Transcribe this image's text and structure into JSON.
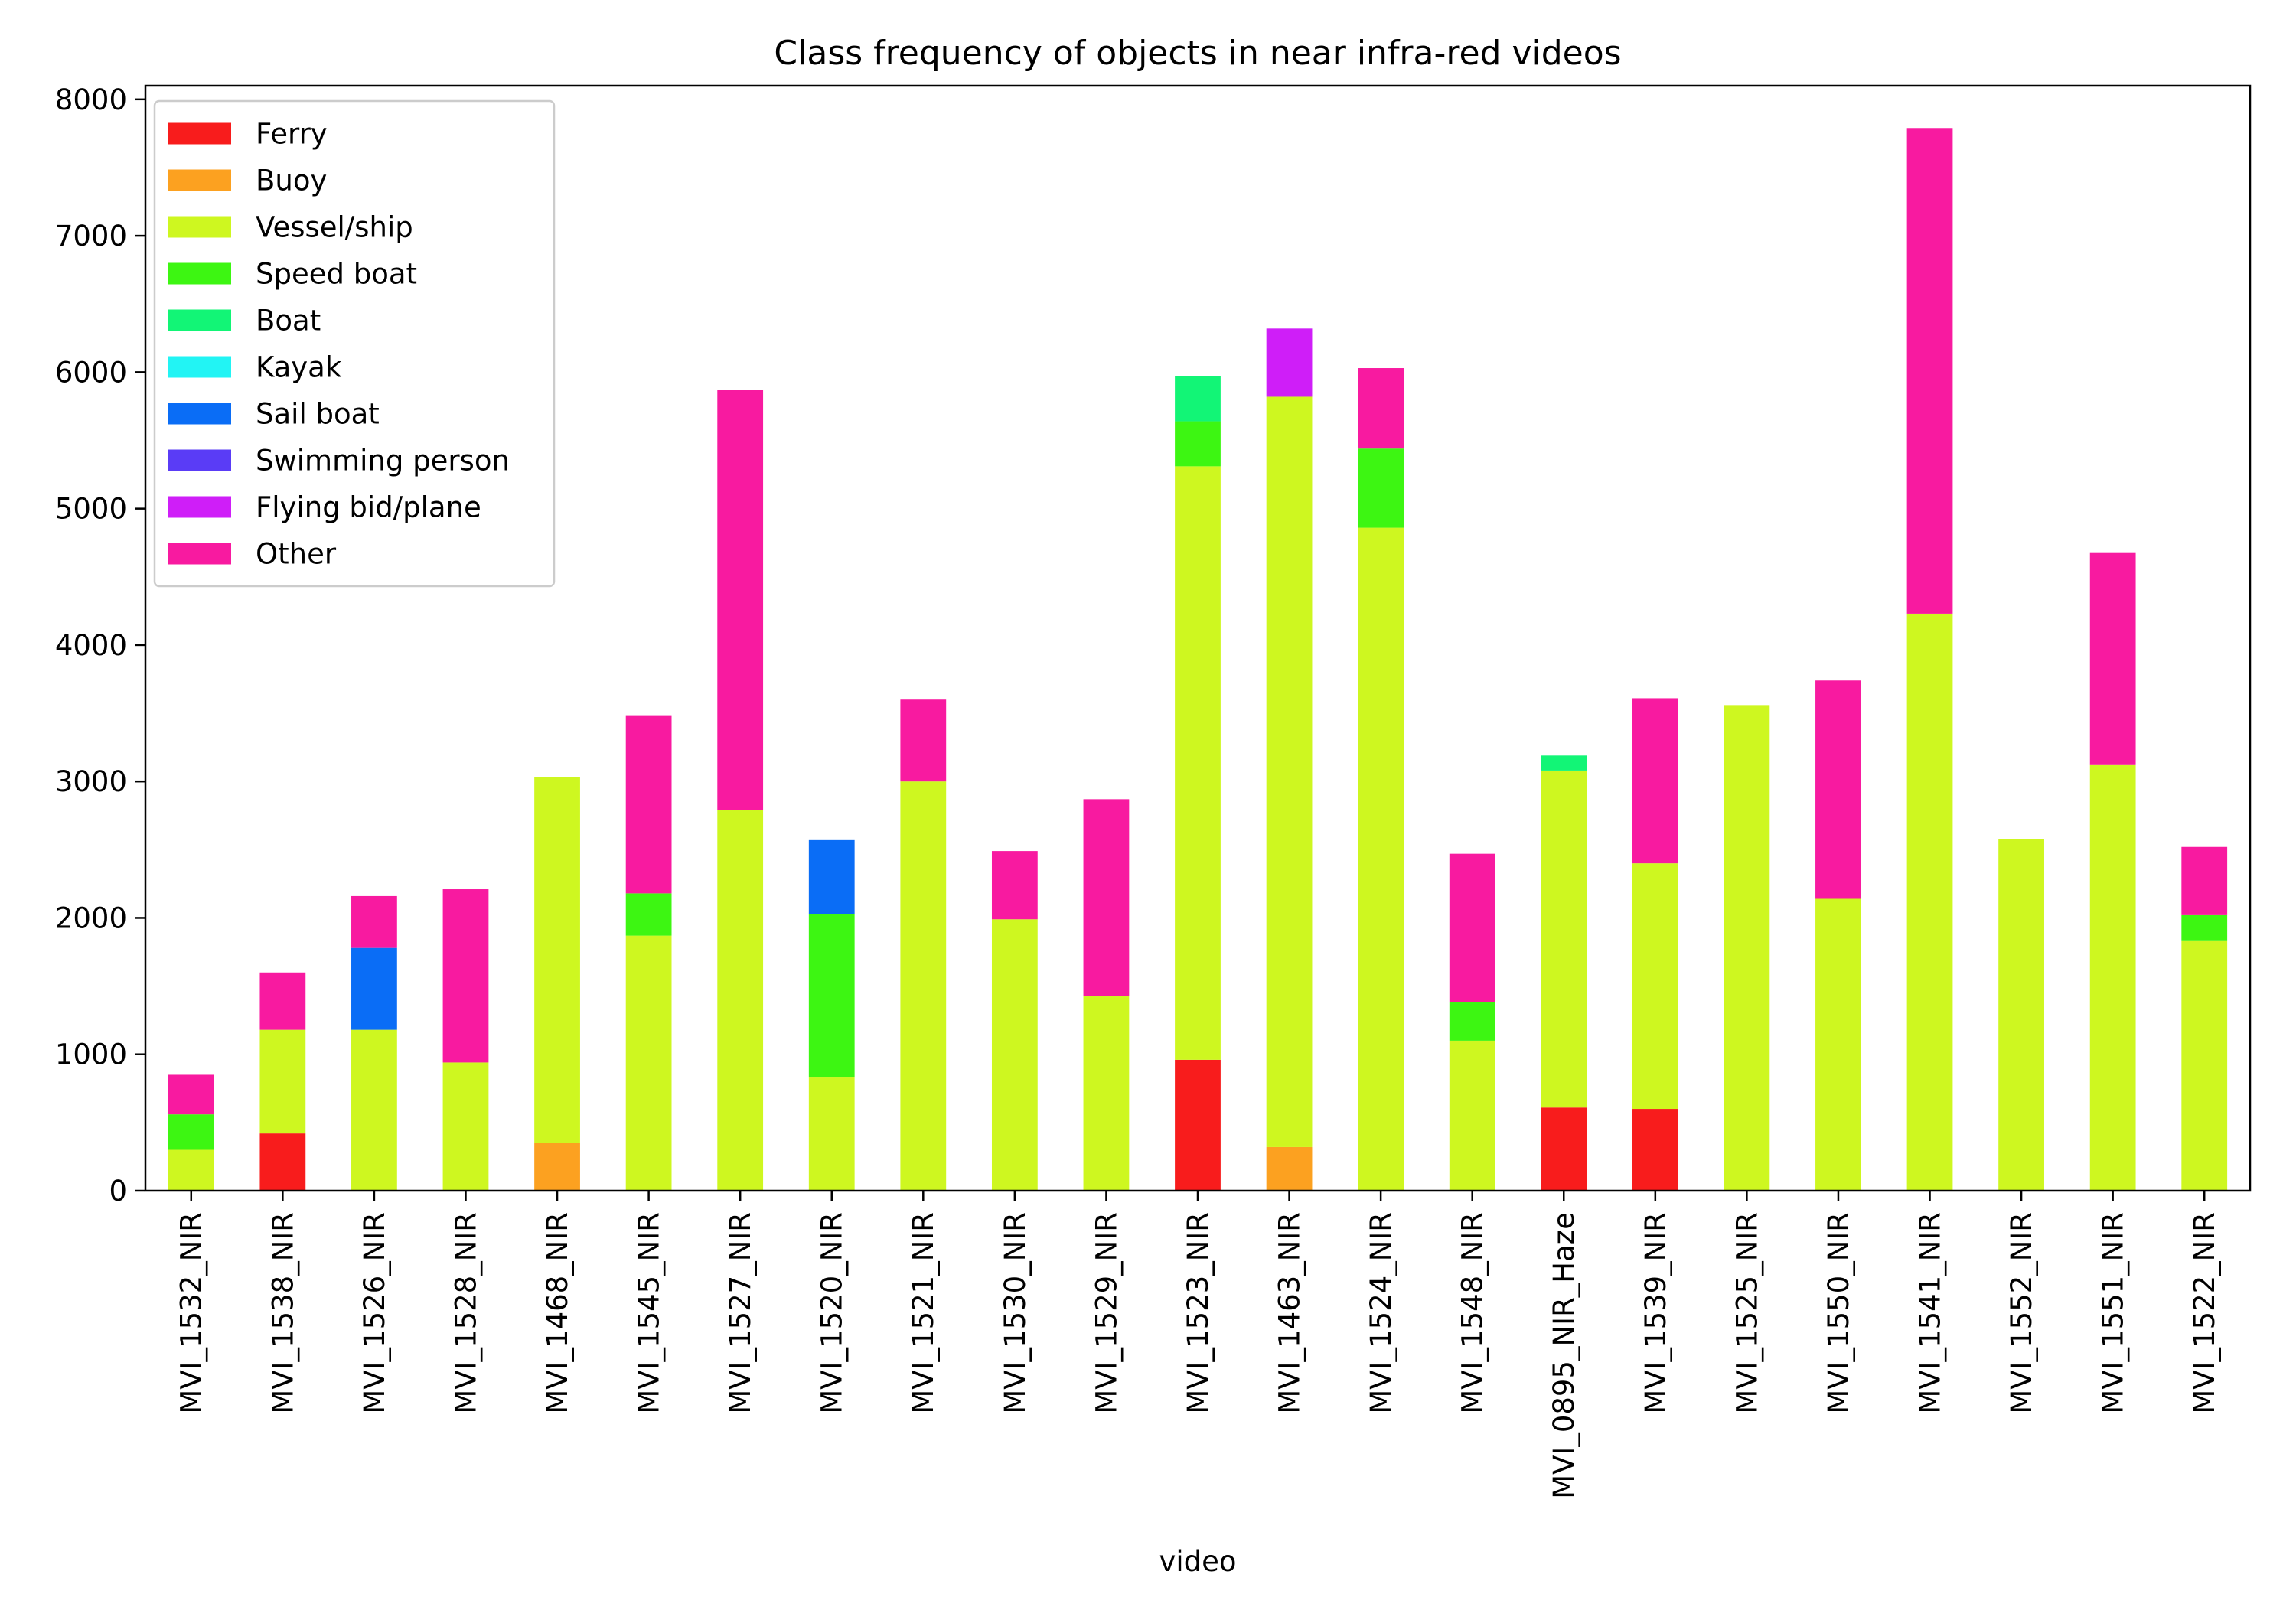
{
  "chart_data": {
    "type": "bar",
    "stacked": true,
    "title": "Class frequency of objects in near infra-red videos",
    "xlabel": "video",
    "ylabel": "",
    "ylim": [
      0,
      8100
    ],
    "yticks": [
      0,
      1000,
      2000,
      3000,
      4000,
      5000,
      6000,
      7000,
      8000
    ],
    "legend_position": "top-left",
    "categories": [
      "MVI_1532_NIR",
      "MVI_1538_NIR",
      "MVI_1526_NIR",
      "MVI_1528_NIR",
      "MVI_1468_NIR",
      "MVI_1545_NIR",
      "MVI_1527_NIR",
      "MVI_1520_NIR",
      "MVI_1521_NIR",
      "MVI_1530_NIR",
      "MVI_1529_NIR",
      "MVI_1523_NIR",
      "MVI_1463_NIR",
      "MVI_1524_NIR",
      "MVI_1548_NIR",
      "MVI_0895_NIR_Haze",
      "MVI_1539_NIR",
      "MVI_1525_NIR",
      "MVI_1550_NIR",
      "MVI_1541_NIR",
      "MVI_1552_NIR",
      "MVI_1551_NIR",
      "MVI_1522_NIR"
    ],
    "series": [
      {
        "name": "Ferry",
        "color": "#f81c1c",
        "values": [
          0,
          420,
          0,
          0,
          0,
          0,
          0,
          0,
          0,
          0,
          0,
          960,
          0,
          0,
          0,
          610,
          600,
          0,
          0,
          0,
          0,
          0,
          0
        ]
      },
      {
        "name": "Buoy",
        "color": "#fca120",
        "values": [
          0,
          0,
          0,
          0,
          350,
          0,
          0,
          0,
          0,
          0,
          0,
          0,
          320,
          0,
          0,
          0,
          0,
          0,
          0,
          0,
          0,
          0,
          0
        ]
      },
      {
        "name": "Vessel/ship",
        "color": "#cef720",
        "values": [
          300,
          760,
          1180,
          940,
          2680,
          1870,
          2790,
          830,
          3000,
          1990,
          1430,
          4350,
          5500,
          4860,
          1100,
          2470,
          1800,
          3560,
          2140,
          4230,
          2580,
          3120,
          1830
        ]
      },
      {
        "name": "Speed boat",
        "color": "#3df612",
        "values": [
          260,
          0,
          0,
          0,
          0,
          310,
          0,
          1200,
          0,
          0,
          0,
          330,
          0,
          580,
          280,
          0,
          0,
          0,
          0,
          0,
          0,
          0,
          190
        ]
      },
      {
        "name": "Boat",
        "color": "#12f576",
        "values": [
          0,
          0,
          0,
          0,
          0,
          0,
          0,
          0,
          0,
          0,
          0,
          330,
          0,
          0,
          0,
          110,
          0,
          0,
          0,
          0,
          0,
          0,
          0
        ]
      },
      {
        "name": "Kayak",
        "color": "#22f4f4",
        "values": [
          0,
          0,
          0,
          0,
          0,
          0,
          0,
          0,
          0,
          0,
          0,
          0,
          0,
          0,
          0,
          0,
          0,
          0,
          0,
          0,
          0,
          0,
          0
        ]
      },
      {
        "name": "Sail boat",
        "color": "#0a6df6",
        "values": [
          0,
          0,
          600,
          0,
          0,
          0,
          0,
          540,
          0,
          0,
          0,
          0,
          0,
          0,
          0,
          0,
          0,
          0,
          0,
          0,
          0,
          0,
          0
        ]
      },
      {
        "name": "Swimming person",
        "color": "#5a3cf6",
        "values": [
          0,
          0,
          0,
          0,
          0,
          0,
          0,
          0,
          0,
          0,
          0,
          0,
          0,
          0,
          0,
          0,
          0,
          0,
          0,
          0,
          0,
          0,
          0
        ]
      },
      {
        "name": "Flying bid/plane",
        "color": "#cf1ef8",
        "values": [
          0,
          0,
          0,
          0,
          0,
          0,
          0,
          0,
          0,
          0,
          0,
          0,
          500,
          0,
          0,
          0,
          0,
          0,
          0,
          0,
          0,
          0,
          0
        ]
      },
      {
        "name": "Other",
        "color": "#f81aa0",
        "values": [
          290,
          420,
          380,
          1270,
          0,
          1300,
          3080,
          0,
          600,
          500,
          1440,
          0,
          0,
          590,
          1090,
          0,
          1210,
          0,
          1600,
          3560,
          0,
          1560,
          500
        ]
      }
    ]
  }
}
